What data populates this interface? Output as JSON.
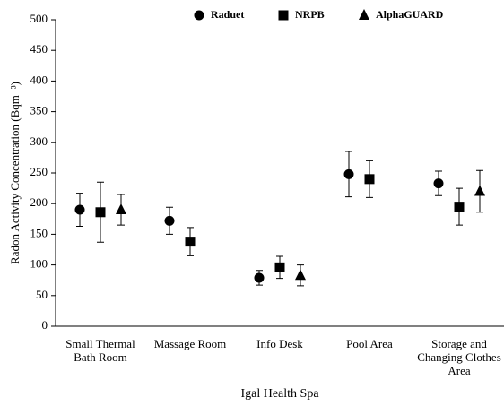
{
  "chart_data": {
    "type": "scatter",
    "y_label": "Radon Activity Concentration (Bqm⁻³)",
    "x_label": "Igal Health Spa",
    "categories": [
      "Small Thermal Bath Room",
      "Massage Room",
      "Info Desk",
      "Pool Area",
      "Storage and Changing Clothes Area"
    ],
    "series": [
      {
        "name": "Raduet",
        "color": "#000000",
        "marker": "circle",
        "values": [
          190,
          172,
          79,
          248,
          233
        ],
        "errors": [
          27,
          22,
          12,
          37,
          20
        ]
      },
      {
        "name": "NRPB",
        "color": "#000000",
        "marker": "square",
        "values": [
          186,
          138,
          96,
          240,
          195
        ],
        "errors": [
          49,
          23,
          18,
          30,
          30
        ]
      },
      {
        "name": "AlphaGUARD",
        "color": "#000000",
        "marker": "triangle",
        "values": [
          190,
          null,
          83,
          null,
          220
        ],
        "errors": [
          25,
          null,
          17,
          null,
          34
        ]
      }
    ],
    "ylim": [
      0,
      500
    ],
    "yticks": [
      0,
      50,
      100,
      150,
      200,
      250,
      300,
      350,
      400,
      450,
      500
    ],
    "grid": false,
    "legend": "top"
  }
}
